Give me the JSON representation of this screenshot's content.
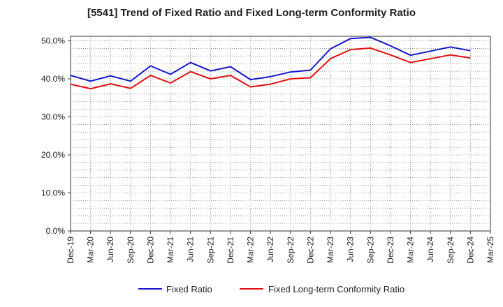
{
  "chart_data": {
    "type": "line",
    "title": "[5541]  Trend of Fixed Ratio and Fixed Long-term Conformity Ratio",
    "xlabel": "",
    "ylabel": "",
    "ylim": [
      0,
      50
    ],
    "y_ticks": [
      "0.0%",
      "10.0%",
      "20.0%",
      "30.0%",
      "40.0%",
      "50.0%"
    ],
    "y_tick_values": [
      0,
      10,
      20,
      30,
      40,
      50
    ],
    "categories": [
      "Dec-19",
      "Mar-20",
      "Jun-20",
      "Sep-20",
      "Dec-20",
      "Mar-21",
      "Jun-21",
      "Sep-21",
      "Dec-21",
      "Mar-22",
      "Jun-22",
      "Sep-22",
      "Dec-22",
      "Mar-23",
      "Jun-23",
      "Sep-23",
      "Dec-23",
      "Mar-24",
      "Jun-24",
      "Sep-24",
      "Dec-24",
      "Mar-25"
    ],
    "grid": true,
    "legend_position": "bottom",
    "series": [
      {
        "name": "Fixed Ratio",
        "color": "#1515c8",
        "values": [
          40.9,
          39.4,
          40.8,
          39.4,
          43.4,
          41.2,
          44.3,
          42.1,
          43.2,
          39.8,
          40.6,
          41.8,
          42.3,
          47.9,
          50.6,
          50.9,
          48.7,
          46.2,
          47.3,
          48.4,
          47.4,
          null
        ]
      },
      {
        "name": "Fixed Long-term Conformity Ratio",
        "color": "#e01010",
        "values": [
          38.6,
          37.4,
          38.7,
          37.5,
          40.9,
          38.9,
          41.9,
          40.0,
          40.9,
          37.9,
          38.6,
          40.0,
          40.3,
          45.3,
          47.7,
          48.1,
          46.3,
          44.3,
          45.3,
          46.3,
          45.5,
          null
        ]
      }
    ]
  }
}
